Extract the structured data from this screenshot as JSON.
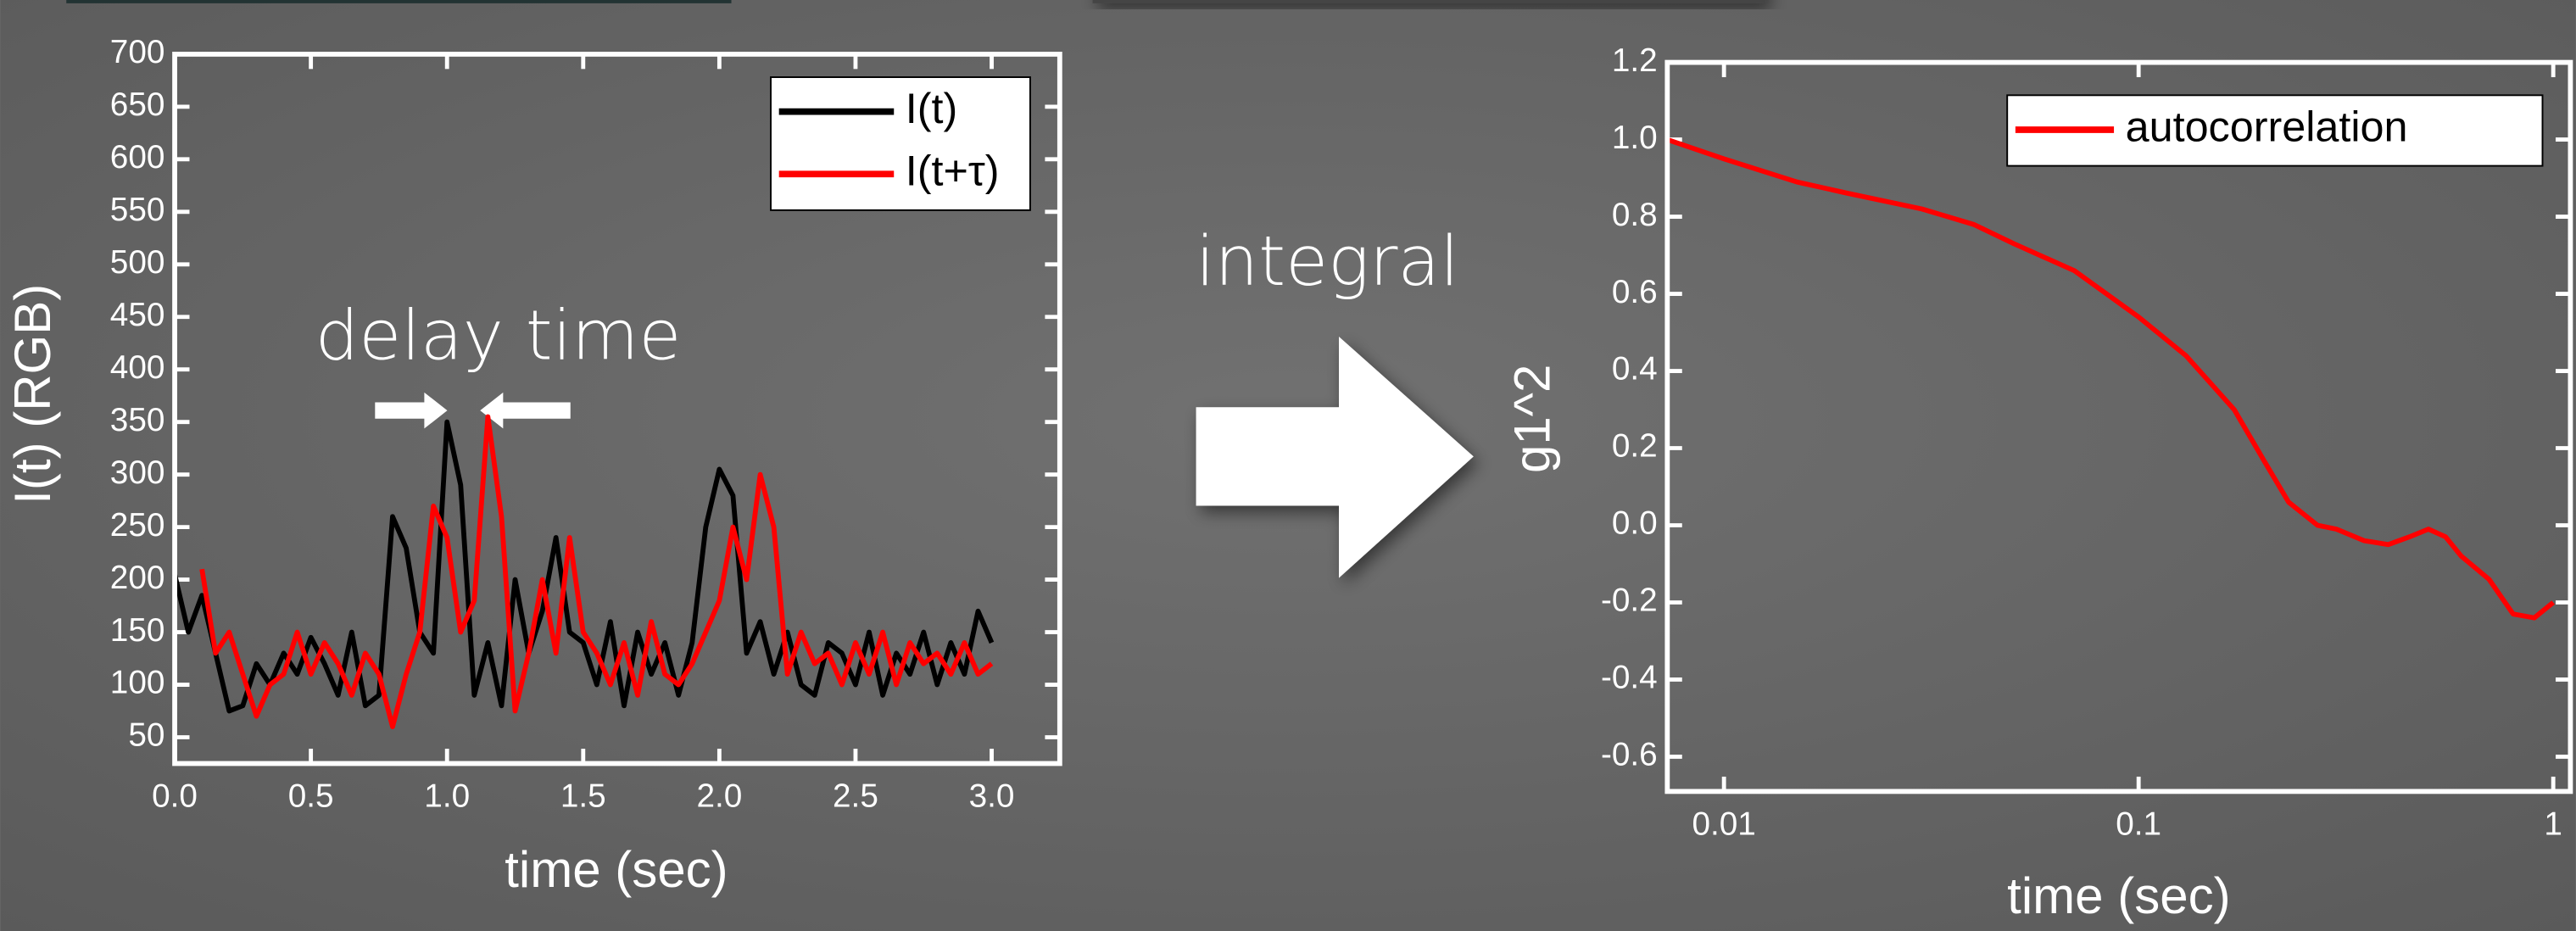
{
  "slide": {
    "arrow_label": "integral"
  },
  "chart_data": [
    {
      "type": "line",
      "annotation": "delay time",
      "x_label": "time (sec)",
      "y_label": "I(t) (RGB)",
      "xlim": [
        0,
        3.25
      ],
      "ylim": [
        25,
        700
      ],
      "xticks": [
        {
          "value": 0,
          "label": "0.0"
        },
        0.5,
        {
          "value": 1,
          "label": "1.0"
        },
        1.5,
        {
          "value": 2,
          "label": "2.0"
        },
        2.5,
        {
          "value": 3,
          "label": "3.0"
        }
      ],
      "yticks": [
        50,
        100,
        150,
        200,
        250,
        300,
        350,
        400,
        450,
        500,
        550,
        600,
        650,
        700
      ],
      "legend": "upper right",
      "series": [
        {
          "name": "I(t)",
          "color": "#000000",
          "x": [
            0,
            0.05,
            0.1,
            0.15,
            0.2,
            0.25,
            0.3,
            0.35,
            0.4,
            0.45,
            0.5,
            0.55,
            0.6,
            0.65,
            0.7,
            0.75,
            0.8,
            0.85,
            0.9,
            0.95,
            1.0,
            1.05,
            1.1,
            1.15,
            1.2,
            1.25,
            1.3,
            1.35,
            1.4,
            1.45,
            1.5,
            1.55,
            1.6,
            1.65,
            1.7,
            1.75,
            1.8,
            1.85,
            1.9,
            1.95,
            2.0,
            2.05,
            2.1,
            2.15,
            2.2,
            2.25,
            2.3,
            2.35,
            2.4,
            2.45,
            2.5,
            2.55,
            2.6,
            2.65,
            2.7,
            2.75,
            2.8,
            2.85,
            2.9,
            2.95,
            3.0
          ],
          "values": [
            205,
            150,
            185,
            130,
            75,
            80,
            120,
            100,
            130,
            110,
            145,
            120,
            90,
            150,
            80,
            90,
            260,
            230,
            150,
            130,
            350,
            290,
            90,
            140,
            80,
            200,
            130,
            170,
            240,
            150,
            140,
            100,
            160,
            80,
            150,
            110,
            140,
            90,
            140,
            250,
            305,
            280,
            130,
            160,
            110,
            150,
            100,
            90,
            140,
            130,
            100,
            150,
            90,
            130,
            110,
            150,
            100,
            140,
            110,
            170,
            140
          ]
        },
        {
          "name": "I(t+τ)",
          "color": "#ff0000",
          "x": [
            0.1,
            0.15,
            0.2,
            0.25,
            0.3,
            0.35,
            0.4,
            0.45,
            0.5,
            0.55,
            0.6,
            0.65,
            0.7,
            0.75,
            0.8,
            0.85,
            0.9,
            0.95,
            1.0,
            1.05,
            1.1,
            1.15,
            1.2,
            1.25,
            1.3,
            1.35,
            1.4,
            1.45,
            1.5,
            1.55,
            1.6,
            1.65,
            1.7,
            1.75,
            1.8,
            1.85,
            1.9,
            1.95,
            2.0,
            2.05,
            2.1,
            2.15,
            2.2,
            2.25,
            2.3,
            2.35,
            2.4,
            2.45,
            2.5,
            2.55,
            2.6,
            2.65,
            2.7,
            2.75,
            2.8,
            2.85,
            2.9,
            2.95,
            3.0
          ],
          "values": [
            210,
            130,
            150,
            110,
            70,
            100,
            110,
            150,
            110,
            140,
            120,
            90,
            130,
            110,
            60,
            110,
            150,
            270,
            240,
            150,
            180,
            355,
            260,
            75,
            130,
            200,
            130,
            240,
            150,
            130,
            100,
            140,
            90,
            160,
            110,
            100,
            120,
            150,
            180,
            250,
            200,
            300,
            250,
            110,
            150,
            120,
            130,
            100,
            140,
            110,
            150,
            100,
            140,
            120,
            130,
            110,
            140,
            110,
            120
          ]
        }
      ]
    },
    {
      "type": "line",
      "x_label": "time (sec)",
      "y_label": "g1^2",
      "log_x": true,
      "xlim": [
        0.0073,
        1.1
      ],
      "ylim": [
        -0.69,
        1.2
      ],
      "xticks": [
        0.01,
        0.1,
        1
      ],
      "yticks": [
        1.2,
        {
          "value": 1,
          "label": "1.0"
        },
        0.8,
        0.6,
        0.4,
        0.2,
        {
          "value": 0,
          "label": "0.0"
        },
        -0.2,
        -0.4,
        -0.6
      ],
      "legend": "upper right",
      "x": [
        0.0073,
        0.01,
        0.015,
        0.02,
        0.03,
        0.04,
        0.05,
        0.07,
        0.1,
        0.13,
        0.17,
        0.2,
        0.23,
        0.27,
        0.3,
        0.35,
        0.4,
        0.45,
        0.5,
        0.55,
        0.6,
        0.7,
        0.8,
        0.9,
        1.0
      ],
      "series": [
        {
          "name": "autocorrelation",
          "color": "#ff0000",
          "values": [
            1.0,
            0.95,
            0.89,
            0.86,
            0.82,
            0.78,
            0.73,
            0.66,
            0.54,
            0.44,
            0.3,
            0.17,
            0.06,
            0.0,
            -0.01,
            -0.04,
            -0.05,
            -0.03,
            -0.01,
            -0.03,
            -0.08,
            -0.14,
            -0.23,
            -0.24,
            -0.2
          ]
        }
      ]
    }
  ]
}
